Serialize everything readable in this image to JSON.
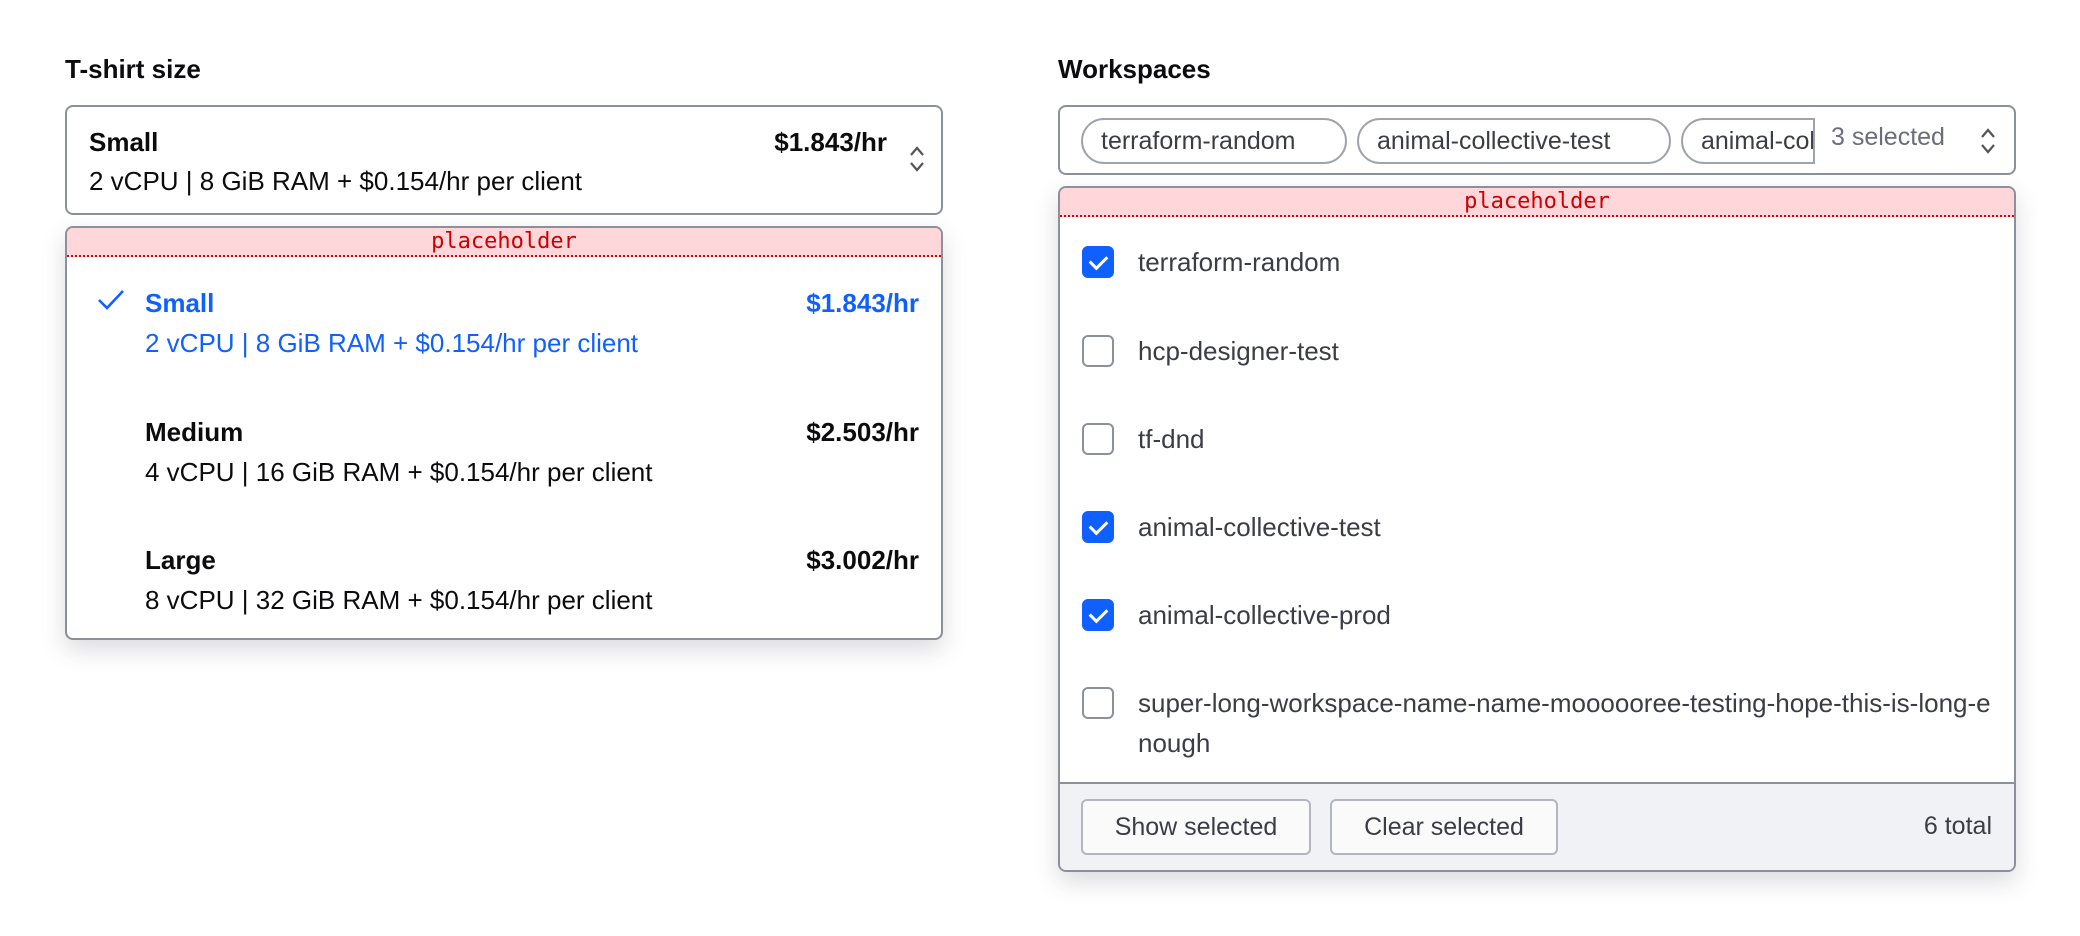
{
  "tshirt": {
    "label": "T-shirt size",
    "selected": {
      "name": "Small",
      "price": "$1.843/hr",
      "desc": "2 vCPU | 8 GiB RAM + $0.154/hr per client"
    },
    "placeholder": "placeholder",
    "options": [
      {
        "name": "Small",
        "price": "$1.843/hr",
        "desc": "2 vCPU | 8 GiB RAM + $0.154/hr per client",
        "selected": true
      },
      {
        "name": "Medium",
        "price": "$2.503/hr",
        "desc": "4 vCPU | 16 GiB RAM + $0.154/hr per client",
        "selected": false
      },
      {
        "name": "Large",
        "price": "$3.002/hr",
        "desc": "8 vCPU | 32 GiB RAM + $0.154/hr per client",
        "selected": false
      }
    ]
  },
  "workspaces": {
    "label": "Workspaces",
    "chips": [
      "terraform-random",
      "animal-collective-test",
      "animal-collective-prod"
    ],
    "selected_count": "3 selected",
    "placeholder": "placeholder",
    "items": [
      {
        "name": "terraform-random",
        "checked": true
      },
      {
        "name": "hcp-designer-test",
        "checked": false
      },
      {
        "name": "tf-dnd",
        "checked": false
      },
      {
        "name": "animal-collective-test",
        "checked": true
      },
      {
        "name": "animal-collective-prod",
        "checked": true
      },
      {
        "name": "super-long-workspace-name-name-moooooree-testing-hope-this-is-long-enough",
        "checked": false
      }
    ],
    "footer": {
      "show_selected": "Show selected",
      "clear_selected": "Clear selected",
      "total": "6 total"
    }
  },
  "colors": {
    "accent": "#1060ff",
    "border": "#8c909c",
    "placeholder_bg": "#ffd6d9"
  }
}
